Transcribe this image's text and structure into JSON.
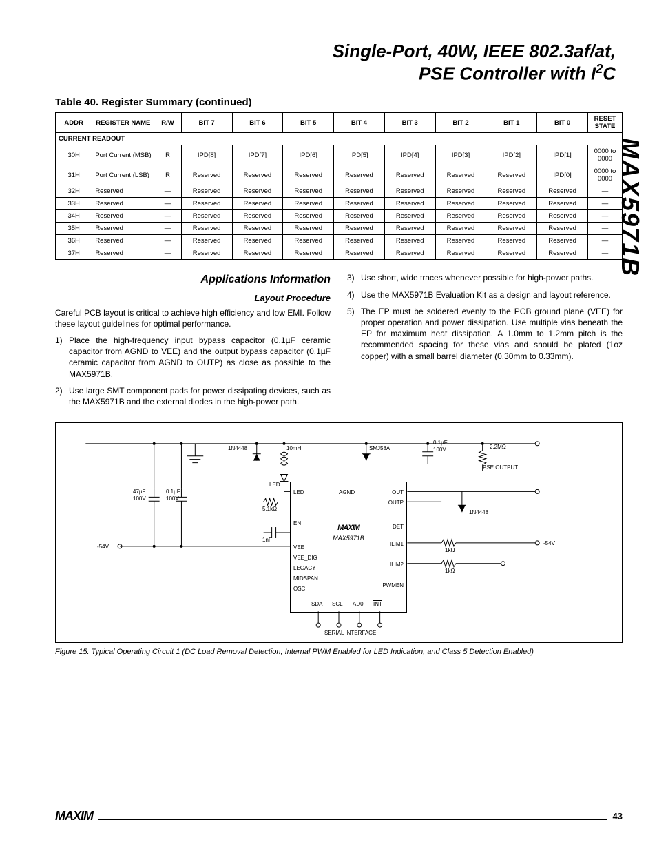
{
  "side_title": "MAX5971B",
  "main_title_line1": "Single-Port, 40W, IEEE 802.3af/at,",
  "main_title_line2": "PSE Controller with I2C",
  "i2c_super": "2",
  "table_title": "Table 40. Register Summary (continued)",
  "table": {
    "headers": [
      "ADDR",
      "REGISTER NAME",
      "R/W",
      "BIT 7",
      "BIT 6",
      "BIT 5",
      "BIT 4",
      "BIT 3",
      "BIT 2",
      "BIT 1",
      "BIT 0",
      "RESET STATE"
    ],
    "section": "CURRENT READOUT",
    "rows": [
      {
        "addr": "30H",
        "name": "Port Current (MSB)",
        "rw": "R",
        "b7": "IPD[8]",
        "b6": "IPD[7]",
        "b5": "IPD[6]",
        "b4": "IPD[5]",
        "b3": "IPD[4]",
        "b2": "IPD[3]",
        "b1": "IPD[2]",
        "b0": "IPD[1]",
        "reset": "0000 to 0000"
      },
      {
        "addr": "31H",
        "name": "Port Current (LSB)",
        "rw": "R",
        "b7": "Reserved",
        "b6": "Reserved",
        "b5": "Reserved",
        "b4": "Reserved",
        "b3": "Reserved",
        "b2": "Reserved",
        "b1": "Reserved",
        "b0": "IPD[0]",
        "reset": "0000 to 0000"
      },
      {
        "addr": "32H",
        "name": "Reserved",
        "rw": "—",
        "b7": "Reserved",
        "b6": "Reserved",
        "b5": "Reserved",
        "b4": "Reserved",
        "b3": "Reserved",
        "b2": "Reserved",
        "b1": "Reserved",
        "b0": "Reserved",
        "reset": "—"
      },
      {
        "addr": "33H",
        "name": "Reserved",
        "rw": "—",
        "b7": "Reserved",
        "b6": "Reserved",
        "b5": "Reserved",
        "b4": "Reserved",
        "b3": "Reserved",
        "b2": "Reserved",
        "b1": "Reserved",
        "b0": "Reserved",
        "reset": "—"
      },
      {
        "addr": "34H",
        "name": "Reserved",
        "rw": "—",
        "b7": "Reserved",
        "b6": "Reserved",
        "b5": "Reserved",
        "b4": "Reserved",
        "b3": "Reserved",
        "b2": "Reserved",
        "b1": "Reserved",
        "b0": "Reserved",
        "reset": "—"
      },
      {
        "addr": "35H",
        "name": "Reserved",
        "rw": "—",
        "b7": "Reserved",
        "b6": "Reserved",
        "b5": "Reserved",
        "b4": "Reserved",
        "b3": "Reserved",
        "b2": "Reserved",
        "b1": "Reserved",
        "b0": "Reserved",
        "reset": "—"
      },
      {
        "addr": "36H",
        "name": "Reserved",
        "rw": "—",
        "b7": "Reserved",
        "b6": "Reserved",
        "b5": "Reserved",
        "b4": "Reserved",
        "b3": "Reserved",
        "b2": "Reserved",
        "b1": "Reserved",
        "b0": "Reserved",
        "reset": "—"
      },
      {
        "addr": "37H",
        "name": "Reserved",
        "rw": "—",
        "b7": "Reserved",
        "b6": "Reserved",
        "b5": "Reserved",
        "b4": "Reserved",
        "b3": "Reserved",
        "b2": "Reserved",
        "b1": "Reserved",
        "b0": "Reserved",
        "reset": "—"
      }
    ]
  },
  "apps_heading": "Applications Information",
  "layout_heading": "Layout Procedure",
  "intro_para": "Careful PCB layout is critical to achieve high efficiency and low EMI. Follow these layout guidelines for optimal performance.",
  "items": [
    {
      "n": "1)",
      "t": "Place the high-frequency input bypass capacitor (0.1µF ceramic capacitor from AGND to VEE) and the output bypass capacitor (0.1µF ceramic capacitor from AGND to OUTP) as close as possible to the MAX5971B."
    },
    {
      "n": "2)",
      "t": "Use large SMT component pads for power dissipating devices, such as the MAX5971B and the external diodes in the high-power path."
    },
    {
      "n": "3)",
      "t": "Use short, wide traces whenever possible for high-power paths."
    },
    {
      "n": "4)",
      "t": "Use the MAX5971B Evaluation Kit as a design and layout reference."
    },
    {
      "n": "5)",
      "t": "The EP must be soldered evenly to the PCB ground plane (VEE) for proper operation and power dissipation. Use multiple vias beneath the EP for maximum heat dissipation. A 1.0mm to 1.2mm pitch is the recommended spacing for these vias and should be plated (1oz copper) with a small barrel diameter (0.30mm to 0.33mm)."
    }
  ],
  "circuit": {
    "logo": "MAXIM",
    "chip": "MAX5971B",
    "pins_left": [
      "LED",
      "AGND",
      "EN",
      "VEE",
      "VEE_DIG",
      "LEGACY",
      "MIDSPAN",
      "OSC",
      "SDA",
      "SCL",
      "AD0",
      "INT"
    ],
    "pins_right": [
      "OUT",
      "OUTP",
      "DET",
      "ILIM1",
      "ILIM2",
      "PWMEN"
    ],
    "labels": {
      "d1": "1N4448",
      "l1": "10mH",
      "d2": "SMJ58A",
      "c1": "0.1µF",
      "c1v": "100V",
      "r1": "2.2MΩ",
      "pse": "PSE OUTPUT",
      "c2": "47µF",
      "c2v": "100V",
      "c3": "0.1µF",
      "c3v": "100V",
      "led": "LED",
      "r2": "5.1kΩ",
      "c4": "1nF",
      "vin": "-54V",
      "d3": "1N4448",
      "r3": "1kΩ",
      "r4": "1kΩ",
      "vout": "-54V",
      "serial": "SERIAL INTERFACE"
    }
  },
  "figure_caption": "Figure 15. Typical Operating Circuit 1 (DC Load Removal Detection, Internal PWM Enabled for LED Indication, and Class 5 Detection Enabled)",
  "footer_logo": "MAXIM",
  "page_number": "43"
}
